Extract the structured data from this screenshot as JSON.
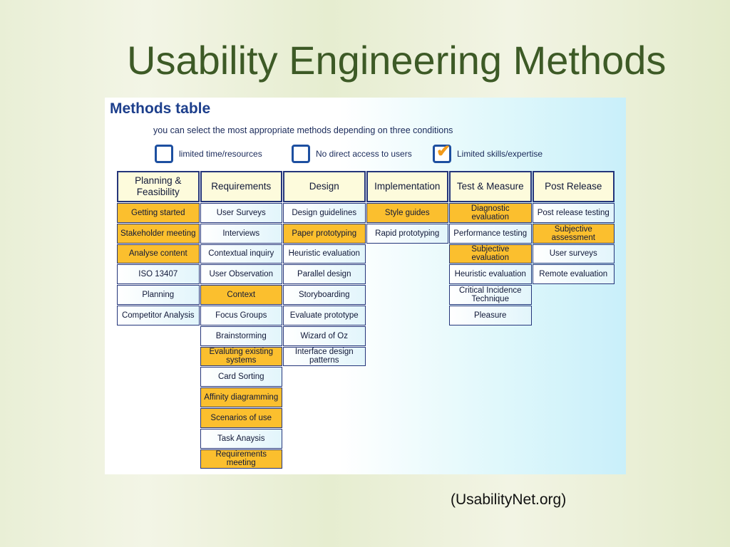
{
  "slide": {
    "title": "Usability Engineering Methods",
    "source": "(UsabilityNet.org)",
    "table": {
      "title": "Methods table",
      "subtitle": "you can select the most appropriate methods depending on three conditions",
      "conditions": [
        {
          "label": "limited time/resources",
          "checked": false
        },
        {
          "label": "No direct access to users",
          "checked": false
        },
        {
          "label": "Limited skills/expertise",
          "checked": true
        }
      ],
      "columns": [
        {
          "header": "Planning & Feasibility",
          "items": [
            {
              "label": "Getting started",
              "highlight": true
            },
            {
              "label": "Stakeholder meeting",
              "highlight": true
            },
            {
              "label": "Analyse content",
              "highlight": true
            },
            {
              "label": "ISO 13407",
              "highlight": false
            },
            {
              "label": "Planning",
              "highlight": false
            },
            {
              "label": "Competitor Analysis",
              "highlight": false
            }
          ]
        },
        {
          "header": "Requirements",
          "items": [
            {
              "label": "User Surveys",
              "highlight": false
            },
            {
              "label": "Interviews",
              "highlight": false
            },
            {
              "label": "Contextual inquiry",
              "highlight": false
            },
            {
              "label": "User Observation",
              "highlight": false
            },
            {
              "label": "Context",
              "highlight": true
            },
            {
              "label": "Focus Groups",
              "highlight": false
            },
            {
              "label": "Brainstorming",
              "highlight": false
            },
            {
              "label": "Evaluting existing systems",
              "highlight": true
            },
            {
              "label": "Card Sorting",
              "highlight": false
            },
            {
              "label": "Affinity diagramming",
              "highlight": true
            },
            {
              "label": "Scenarios of use",
              "highlight": true
            },
            {
              "label": "Task Anaysis",
              "highlight": false
            },
            {
              "label": "Requirements meeting",
              "highlight": true
            }
          ]
        },
        {
          "header": "Design",
          "items": [
            {
              "label": "Design guidelines",
              "highlight": false
            },
            {
              "label": "Paper prototyping",
              "highlight": true
            },
            {
              "label": "Heuristic evaluation",
              "highlight": false
            },
            {
              "label": "Parallel design",
              "highlight": false
            },
            {
              "label": "Storyboarding",
              "highlight": false
            },
            {
              "label": "Evaluate prototype",
              "highlight": false
            },
            {
              "label": "Wizard of Oz",
              "highlight": false
            },
            {
              "label": "Interface design patterns",
              "highlight": false
            }
          ]
        },
        {
          "header": "Implementation",
          "items": [
            {
              "label": "Style guides",
              "highlight": true
            },
            {
              "label": "Rapid prototyping",
              "highlight": false
            }
          ]
        },
        {
          "header": "Test & Measure",
          "items": [
            {
              "label": "Diagnostic evaluation",
              "highlight": true
            },
            {
              "label": "Performance testing",
              "highlight": false
            },
            {
              "label": "Subjective evaluation",
              "highlight": true
            },
            {
              "label": "Heuristic evaluation",
              "highlight": false
            },
            {
              "label": "Critical Incidence Technique",
              "highlight": false
            },
            {
              "label": "Pleasure",
              "highlight": false
            }
          ]
        },
        {
          "header": "Post Release",
          "items": [
            {
              "label": "Post release testing",
              "highlight": false
            },
            {
              "label": "Subjective assessment",
              "highlight": true
            },
            {
              "label": "User surveys",
              "highlight": false
            },
            {
              "label": "Remote evaluation",
              "highlight": false
            }
          ]
        }
      ]
    }
  }
}
